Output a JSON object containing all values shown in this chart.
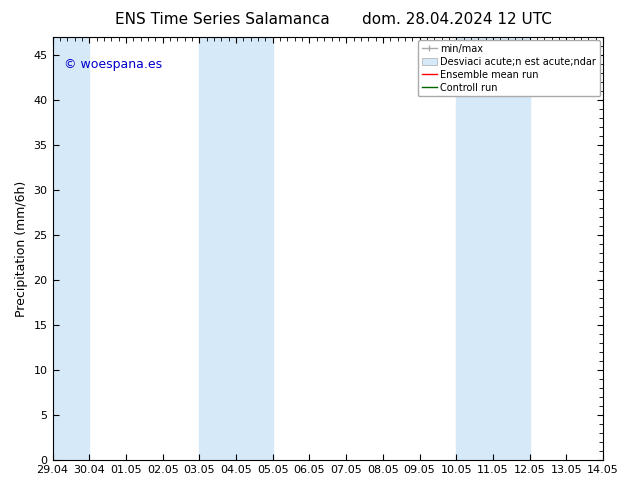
{
  "title_left": "ENS Time Series Salamanca",
  "title_right": "dom. 28.04.2024 12 UTC",
  "ylabel": "Precipitation (mm/6h)",
  "xlabel": "",
  "y_min": 0,
  "y_max": 47,
  "yticks": [
    0,
    5,
    10,
    15,
    20,
    25,
    30,
    35,
    40,
    45
  ],
  "xtick_labels": [
    "29.04",
    "30.04",
    "01.05",
    "02.05",
    "03.05",
    "04.05",
    "05.05",
    "06.05",
    "07.05",
    "08.05",
    "09.05",
    "10.05",
    "11.05",
    "12.05",
    "13.05",
    "14.05"
  ],
  "xtick_positions": [
    0,
    1,
    2,
    3,
    4,
    5,
    6,
    7,
    8,
    9,
    10,
    11,
    12,
    13,
    14,
    15
  ],
  "shaded_bands": [
    {
      "x_start": 0.0,
      "x_end": 1.0,
      "color": "#d6e9f8"
    },
    {
      "x_start": 4.0,
      "x_end": 6.0,
      "color": "#d6e9f8"
    },
    {
      "x_start": 11.0,
      "x_end": 13.0,
      "color": "#d6e9f8"
    }
  ],
  "watermark_text": "© woespana.es",
  "watermark_color": "#0000cc",
  "bg_color": "#ffffff",
  "plot_bg_color": "#ffffff",
  "title_fontsize": 11,
  "axis_label_fontsize": 9,
  "tick_fontsize": 8,
  "legend_fontsize": 7
}
